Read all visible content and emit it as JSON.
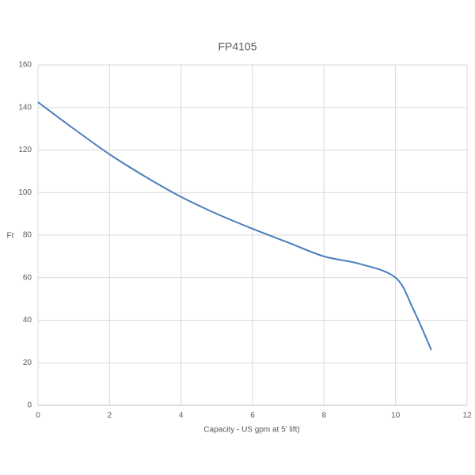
{
  "chart_data": {
    "type": "line",
    "title": "FP4105",
    "x_label": "Capacity - US gpm at 5' lift)",
    "y_label": "Ft",
    "x": [
      0,
      1,
      2,
      3,
      4,
      5,
      6,
      7,
      8,
      9,
      10,
      10.5,
      11
    ],
    "series": [
      {
        "name": "FP4105",
        "color": "#4a7ebb",
        "values": [
          142.5,
          130,
          118,
          107.5,
          98,
          90,
          83,
          76.5,
          70,
          66.5,
          60,
          45,
          26
        ]
      }
    ],
    "xlim": [
      0,
      12
    ],
    "xticks": [
      0,
      2,
      4,
      6,
      8,
      10,
      12
    ],
    "ylim": [
      0,
      160
    ],
    "yticks": [
      0,
      20,
      40,
      60,
      80,
      100,
      120,
      140,
      160
    ],
    "grid": true
  }
}
